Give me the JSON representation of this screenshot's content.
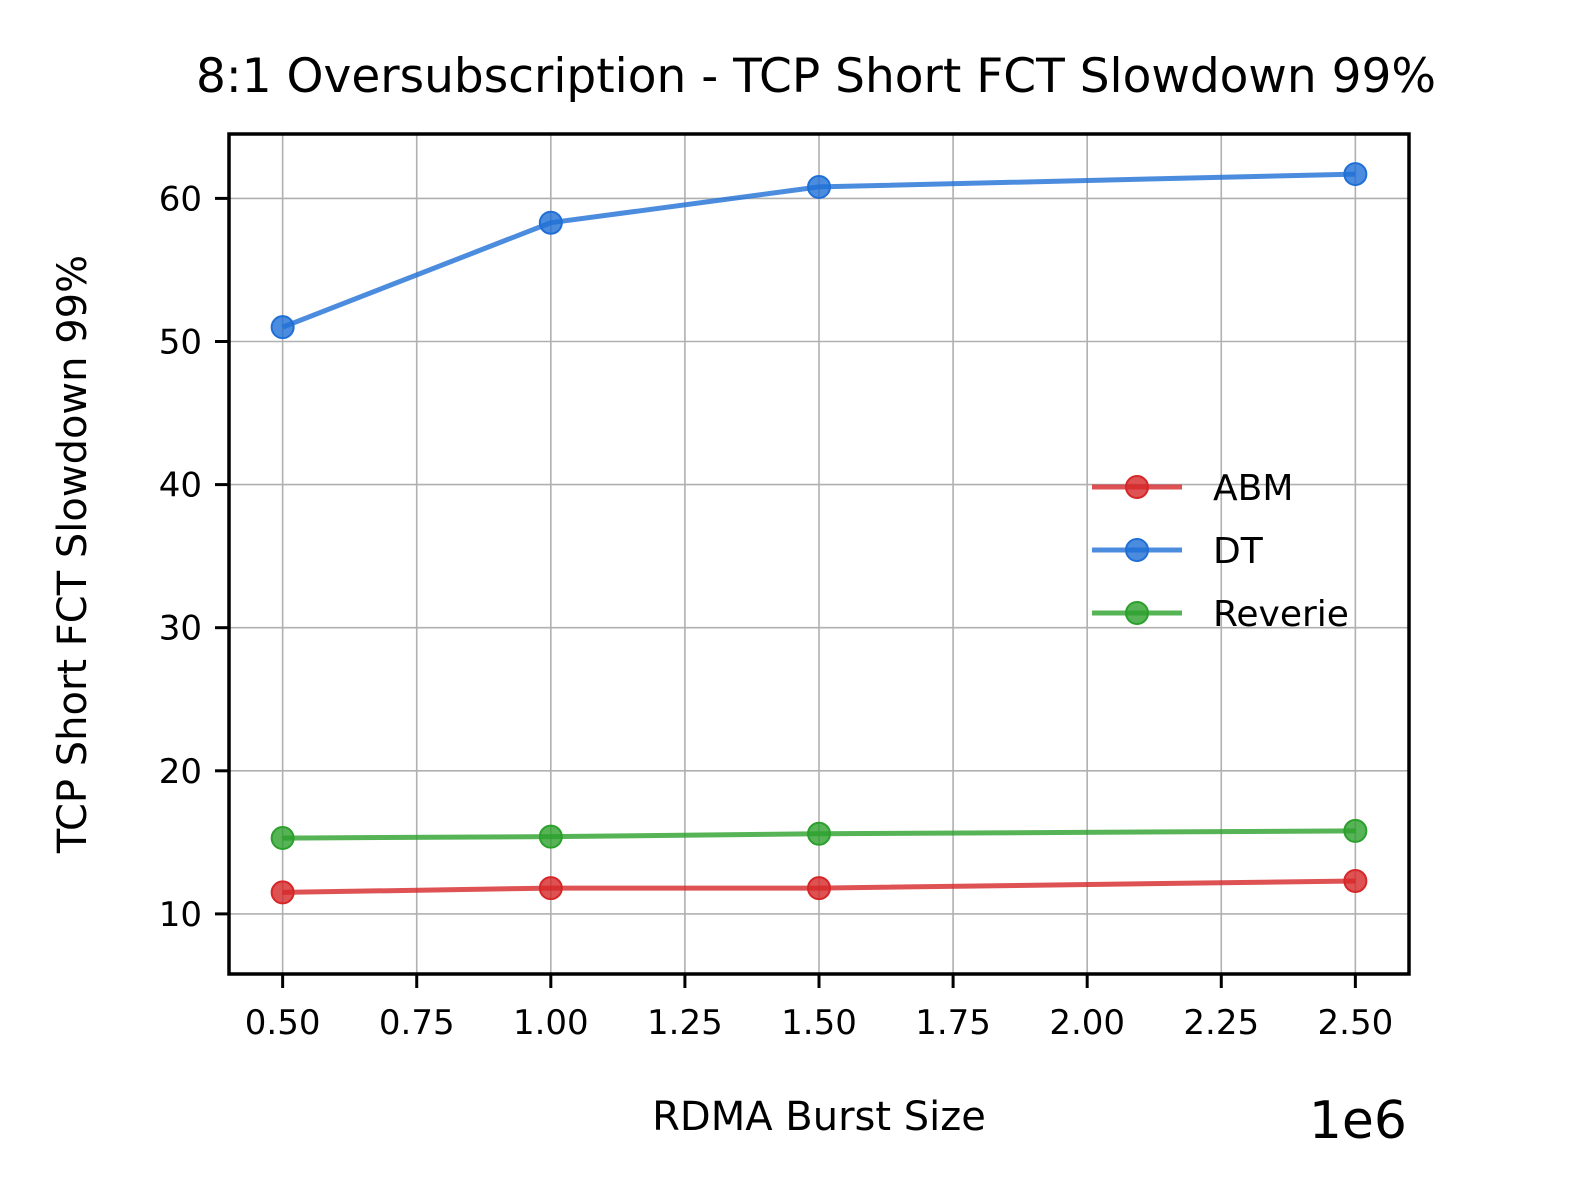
{
  "chart_data": {
    "type": "line",
    "title": "8:1 Oversubscription - TCP Short FCT Slowdown 99%",
    "xlabel": "RDMA Burst Size",
    "ylabel": "TCP Short FCT Slowdown 99%",
    "x_offset_label": "1e6",
    "x_scale": 1000000,
    "x": [
      500000,
      1000000,
      1500000,
      2500000
    ],
    "xlim": [
      400000,
      2600000
    ],
    "ylim": [
      5.8,
      64.5
    ],
    "x_ticks": [
      500000,
      750000,
      1000000,
      1250000,
      1500000,
      1750000,
      2000000,
      2250000,
      2500000
    ],
    "x_tick_labels": [
      "0.50",
      "0.75",
      "1.00",
      "1.25",
      "1.50",
      "1.75",
      "2.00",
      "2.25",
      "2.50"
    ],
    "y_ticks": [
      10,
      20,
      30,
      40,
      50,
      60
    ],
    "y_tick_labels": [
      "10",
      "20",
      "30",
      "40",
      "50",
      "60"
    ],
    "grid": true,
    "legend_position": "center-right",
    "series": [
      {
        "name": "ABM",
        "color": "#d62728",
        "values": [
          11.5,
          11.8,
          11.8,
          12.3
        ]
      },
      {
        "name": "DT",
        "color": "#1f6fd6",
        "values": [
          51.0,
          58.3,
          60.8,
          61.7
        ]
      },
      {
        "name": "Reverie",
        "color": "#2ca02c",
        "values": [
          15.3,
          15.4,
          15.6,
          15.8
        ]
      }
    ]
  }
}
